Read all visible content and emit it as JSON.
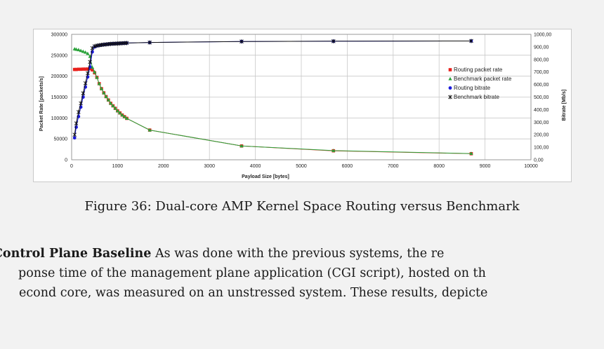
{
  "figure": {
    "caption": "Figure 36: Dual-core AMP Kernel Space Routing versus Benchmark"
  },
  "paragraph": {
    "line1_bold": "Control Plane Baseline",
    "line1_rest": "  As was done with the previous systems, the re",
    "line2": "ponse time of the management plane application (CGI script), hosted on th",
    "line3": "econd core, was measured on an unstressed system.  These results, depicte"
  },
  "chart_data": {
    "type": "line",
    "xlabel": "Payload Size [bytes]",
    "ylabel": "Packet Rate [packets/s]",
    "y2label": "Bitrate [Mb/s]",
    "xlim": [
      0,
      10000
    ],
    "ylim": [
      0,
      300000
    ],
    "y2lim": [
      0,
      1000
    ],
    "x_ticks": [
      "0",
      "1000",
      "2000",
      "3000",
      "4000",
      "5000",
      "6000",
      "7000",
      "8000",
      "9000",
      "10000"
    ],
    "y_ticks": [
      "0",
      "50000",
      "100000",
      "150000",
      "200000",
      "250000",
      "300000"
    ],
    "y2_ticks": [
      "0,00",
      "100,00",
      "200,00",
      "300,00",
      "400,00",
      "500,00",
      "600,00",
      "700,00",
      "800,00",
      "900,00",
      "1000,00"
    ],
    "grid": true,
    "legend_position": "right",
    "series": [
      {
        "name": "Routing packet rate",
        "axis": "left",
        "color": "#e8201c",
        "marker": "square",
        "x": [
          64,
          100,
          150,
          200,
          250,
          300,
          350,
          400,
          450,
          500,
          550,
          600,
          650,
          700,
          750,
          800,
          850,
          900,
          950,
          1000,
          1050,
          1100,
          1150,
          1200,
          1700,
          3700,
          5700,
          8700
        ],
        "y": [
          216000,
          216000,
          216500,
          216500,
          216800,
          216800,
          217000,
          218000,
          215000,
          208000,
          197000,
          182000,
          170000,
          160000,
          151000,
          143000,
          135000,
          129000,
          123000,
          117000,
          112000,
          107000,
          103000,
          99000,
          71000,
          33000,
          21500,
          14500
        ]
      },
      {
        "name": "Benchmark packet rate",
        "axis": "left",
        "color": "#2aa23a",
        "marker": "triangle",
        "x": [
          64,
          100,
          150,
          200,
          250,
          300,
          350,
          400,
          450,
          500,
          550,
          600,
          650,
          700,
          750,
          800,
          850,
          900,
          950,
          1000,
          1050,
          1100,
          1150,
          1200,
          1700,
          3700,
          5700,
          8700
        ],
        "y": [
          265000,
          264000,
          263000,
          261000,
          259000,
          257000,
          254000,
          247000,
          221000,
          210000,
          197000,
          182000,
          170000,
          160000,
          151000,
          143000,
          135000,
          129000,
          123000,
          117000,
          112000,
          107000,
          103000,
          99000,
          71000,
          33000,
          22000,
          15000
        ]
      },
      {
        "name": "Routing bitrate",
        "axis": "right",
        "color": "#1a1adc",
        "marker": "circle",
        "x": [
          64,
          100,
          150,
          200,
          250,
          300,
          350,
          400,
          450,
          500,
          550,
          600,
          650,
          700,
          750,
          800,
          850,
          900,
          950,
          1000,
          1050,
          1100,
          1150,
          1200,
          1700,
          3700,
          5700,
          8700
        ],
        "y": [
          175,
          260,
          345,
          420,
          500,
          580,
          660,
          740,
          860,
          900,
          908,
          912,
          915,
          918,
          920,
          922,
          924,
          925,
          926,
          927,
          928,
          929,
          930,
          931,
          935,
          943,
          945,
          947
        ]
      },
      {
        "name": "Benchmark bitrate",
        "axis": "right",
        "color": "#111111",
        "marker": "star",
        "x": [
          64,
          100,
          150,
          200,
          250,
          300,
          350,
          400,
          450,
          500,
          550,
          600,
          650,
          700,
          750,
          800,
          850,
          900,
          950,
          1000,
          1050,
          1100,
          1150,
          1200,
          1700,
          3700,
          5700,
          8700
        ],
        "y": [
          200,
          290,
          380,
          450,
          530,
          610,
          690,
          780,
          890,
          905,
          910,
          913,
          916,
          918,
          920,
          922,
          924,
          925,
          926,
          927,
          928,
          929,
          930,
          931,
          935,
          943,
          945,
          947
        ]
      }
    ]
  }
}
